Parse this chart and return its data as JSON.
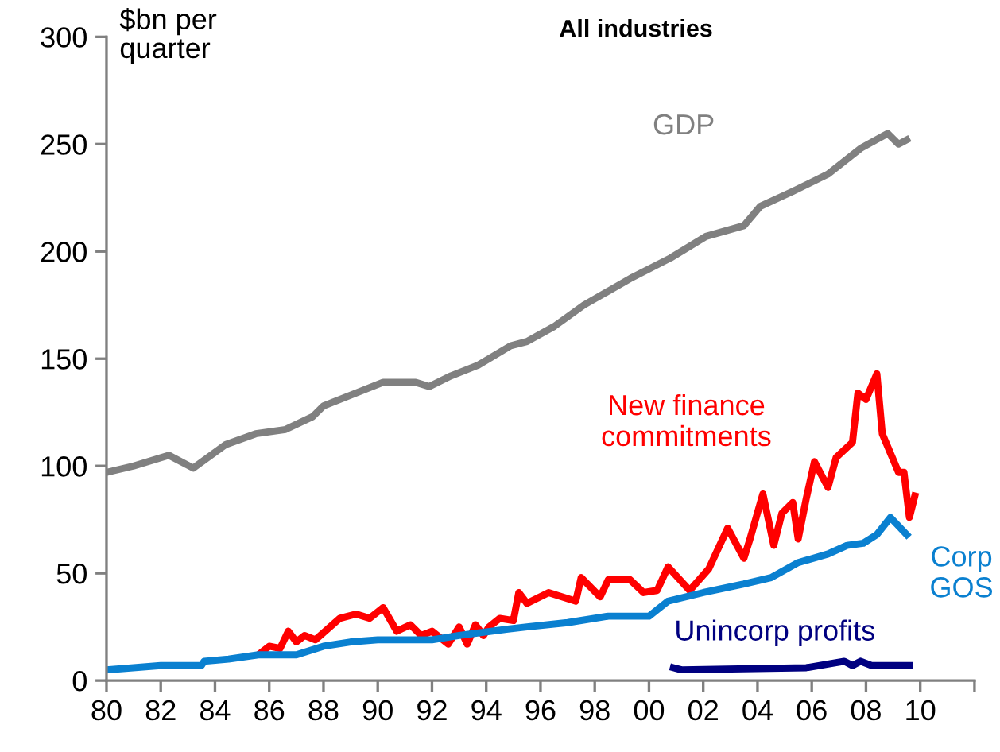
{
  "chart_data": {
    "type": "line",
    "title": "All industries",
    "ylabel": "$bn per quarter",
    "xlim": [
      1980,
      2012
    ],
    "xticks": [
      {
        "value": 1980,
        "label": "80"
      },
      {
        "value": 1982,
        "label": "82"
      },
      {
        "value": 1984,
        "label": "84"
      },
      {
        "value": 1986,
        "label": "86"
      },
      {
        "value": 1988,
        "label": "88"
      },
      {
        "value": 1990,
        "label": "90"
      },
      {
        "value": 1992,
        "label": "92"
      },
      {
        "value": 1994,
        "label": "94"
      },
      {
        "value": 1996,
        "label": "96"
      },
      {
        "value": 1998,
        "label": "98"
      },
      {
        "value": 2000,
        "label": "00"
      },
      {
        "value": 2002,
        "label": "02"
      },
      {
        "value": 2004,
        "label": "04"
      },
      {
        "value": 2006,
        "label": "06"
      },
      {
        "value": 2008,
        "label": "08"
      },
      {
        "value": 2010,
        "label": "10"
      },
      {
        "value": 2012,
        "label": null
      }
    ],
    "ylim": [
      0,
      300
    ],
    "yticks": [
      0,
      50,
      100,
      150,
      200,
      250,
      300
    ],
    "grid": false,
    "legend": false,
    "marker": "none",
    "line_style": "solid",
    "series": [
      {
        "name": "GDP",
        "color": "#808080",
        "x": [
          1980,
          1981,
          1982.3,
          1983.2,
          1984.4,
          1985.5,
          1986.6,
          1987.6,
          1988,
          1989,
          1990.2,
          1991.4,
          1991.9,
          1992.7,
          1993.7,
          1994.9,
          1995.5,
          1996.5,
          1997.6,
          1999.4,
          2000.8,
          2002.1,
          2003.5,
          2004.1,
          2005.3,
          2006.6,
          2007.8,
          2008.8,
          2009.2,
          2009.5
        ],
        "values": [
          97,
          100,
          105,
          99,
          110,
          115,
          117,
          123,
          128,
          133,
          139,
          139,
          137,
          142,
          147,
          156,
          158,
          165,
          175,
          188,
          197,
          207,
          212,
          221,
          228,
          236,
          248,
          255,
          250,
          252
        ]
      },
      {
        "name": "New finance commitments",
        "color": "#ff0000",
        "x": [
          1985.7,
          1986,
          1986.4,
          1986.7,
          1987,
          1987.3,
          1987.7,
          1988.6,
          1989.2,
          1989.7,
          1990.2,
          1990.7,
          1991.2,
          1991.6,
          1992,
          1992.6,
          1993,
          1993.3,
          1993.6,
          1993.9,
          1994.1,
          1994.5,
          1995,
          1995.2,
          1995.5,
          1996.3,
          1997.3,
          1997.5,
          1998.2,
          1998.5,
          1999.3,
          1999.8,
          2000.3,
          2000.7,
          2001.5,
          2002.2,
          2002.9,
          2003.5,
          2003.7,
          2004.2,
          2004.6,
          2004.9,
          2005.3,
          2005.5,
          2005.8,
          2006.1,
          2006.6,
          2006.9,
          2007.5,
          2007.7,
          2008,
          2008.4,
          2008.6,
          2009.2,
          2009.4,
          2009.6,
          2009.8
        ],
        "values": [
          13,
          16,
          15,
          23,
          18,
          21,
          19,
          29,
          31,
          29,
          34,
          23,
          26,
          21,
          23,
          17,
          25,
          17,
          26,
          21,
          25,
          29,
          28,
          41,
          36,
          41,
          37,
          48,
          39,
          47,
          47,
          41,
          42,
          53,
          42,
          52,
          71,
          57,
          65,
          87,
          63,
          78,
          83,
          66,
          85,
          102,
          90,
          104,
          111,
          134,
          131,
          143,
          115,
          97,
          97,
          76,
          86
        ]
      },
      {
        "name": "Corp GOS",
        "color": "#0a80d0",
        "x": [
          1980,
          1982,
          1983.5,
          1983.6,
          1984.5,
          1985.6,
          1987,
          1988,
          1989,
          1990,
          1992,
          1993,
          1994.8,
          1995.5,
          1997,
          1998.5,
          2000,
          2000.7,
          2002,
          2003.5,
          2004.5,
          2005.5,
          2006.6,
          2007.3,
          2007.9,
          2008.4,
          2008.9,
          2009.2,
          2009.5
        ],
        "values": [
          5,
          7,
          7,
          9,
          10,
          12,
          12,
          16,
          18,
          19,
          19,
          21,
          24,
          25,
          27,
          30,
          30,
          37,
          41,
          45,
          48,
          55,
          59,
          63,
          64,
          68,
          76,
          72,
          68
        ]
      },
      {
        "name": "Unincorp profits",
        "color": "#000080",
        "x": [
          2000.9,
          2001.2,
          2005.8,
          2007.2,
          2007.5,
          2007.8,
          2008.2,
          2009.6
        ],
        "values": [
          6,
          5,
          6,
          9,
          7,
          9,
          7,
          7
        ]
      }
    ]
  }
}
